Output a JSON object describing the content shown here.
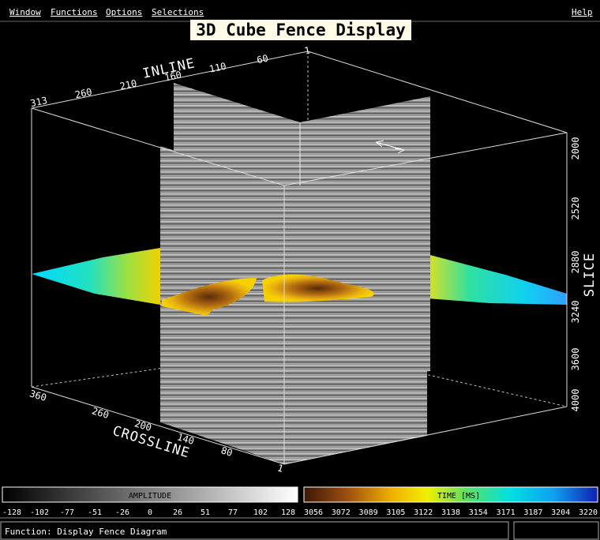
{
  "menu": {
    "items": [
      "Window",
      "Functions",
      "Options",
      "Selections"
    ],
    "help": "Help"
  },
  "title": "3D Cube Fence Display",
  "axes": {
    "inline": {
      "label": "INLINE",
      "ticks": [
        313,
        260,
        210,
        160,
        110,
        60,
        1
      ]
    },
    "crossline": {
      "label": "CROSSLINE",
      "ticks": [
        360,
        260,
        200,
        140,
        80,
        1
      ]
    },
    "slice": {
      "label": "SLICE",
      "ticks": [
        2000,
        2520,
        2880,
        3240,
        3600,
        4000
      ]
    }
  },
  "colorbars": [
    {
      "label": "AMPLITUDE",
      "ticks": [
        -128,
        -102,
        -77,
        -51,
        -26,
        0,
        26,
        51,
        77,
        102,
        128
      ]
    },
    {
      "label": "TIME [MS]",
      "ticks": [
        3056,
        3072,
        3089,
        3105,
        3122,
        3138,
        3154,
        3171,
        3187,
        3204,
        3220
      ]
    }
  ],
  "status": "Function: Display Fence Diagram"
}
